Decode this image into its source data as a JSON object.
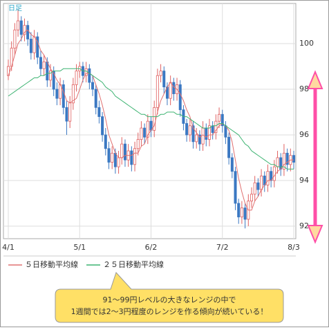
{
  "chart_data": {
    "type": "candlestick",
    "period_label": "日足",
    "categories": [
      "4/1",
      null,
      null,
      null,
      null,
      null,
      null,
      null,
      null,
      null,
      null,
      null,
      null,
      null,
      null,
      null,
      null,
      null,
      null,
      null,
      null,
      null,
      "5/1",
      null,
      null,
      null,
      null,
      null,
      null,
      null,
      null,
      null,
      null,
      null,
      null,
      null,
      null,
      null,
      null,
      null,
      null,
      null,
      null,
      null,
      "6/2",
      null,
      null,
      null,
      null,
      null,
      null,
      null,
      null,
      null,
      null,
      null,
      null,
      null,
      null,
      null,
      null,
      null,
      null,
      null,
      null,
      null,
      "7/2",
      null,
      null,
      null,
      null,
      null,
      null,
      null,
      null,
      null,
      null,
      null,
      null,
      null,
      null,
      null,
      null,
      null,
      null,
      null,
      null,
      null,
      "8/3"
    ],
    "ohlc": [
      [
        98.6,
        99.3,
        98.4,
        99.0
      ],
      [
        99.0,
        100.1,
        98.8,
        99.8
      ],
      [
        99.8,
        100.9,
        99.5,
        100.6
      ],
      [
        100.6,
        101.5,
        100.3,
        101.0
      ],
      [
        101.0,
        101.2,
        100.1,
        100.4
      ],
      [
        100.4,
        101.1,
        100.1,
        100.8
      ],
      [
        100.8,
        101.0,
        99.9,
        100.2
      ],
      [
        100.2,
        100.5,
        99.3,
        99.6
      ],
      [
        99.6,
        100.6,
        99.3,
        100.3
      ],
      [
        100.3,
        100.5,
        99.1,
        99.4
      ],
      [
        99.4,
        99.7,
        98.6,
        98.9
      ],
      [
        98.9,
        99.5,
        98.6,
        99.2
      ],
      [
        99.2,
        99.4,
        98.1,
        98.4
      ],
      [
        98.4,
        99.1,
        98.1,
        98.8
      ],
      [
        98.8,
        99.0,
        97.7,
        98.0
      ],
      [
        98.0,
        98.3,
        97.3,
        97.6
      ],
      [
        97.6,
        98.5,
        97.3,
        98.2
      ],
      [
        98.2,
        98.4,
        96.9,
        97.2
      ],
      [
        97.2,
        97.5,
        96.0,
        96.6
      ],
      [
        96.6,
        97.7,
        96.3,
        97.4
      ],
      [
        97.4,
        98.5,
        97.1,
        98.2
      ],
      [
        98.2,
        99.1,
        97.9,
        98.8
      ],
      [
        98.8,
        99.2,
        98.5,
        99.0
      ],
      [
        99.0,
        99.2,
        98.3,
        98.6
      ],
      [
        98.6,
        99.2,
        98.3,
        98.9
      ],
      [
        98.9,
        99.1,
        98.0,
        98.3
      ],
      [
        98.3,
        98.6,
        97.7,
        98.0
      ],
      [
        98.0,
        98.2,
        96.9,
        97.2
      ],
      [
        97.2,
        97.5,
        96.5,
        96.8
      ],
      [
        96.8,
        97.0,
        95.7,
        96.0
      ],
      [
        96.0,
        96.3,
        95.1,
        95.4
      ],
      [
        95.4,
        95.7,
        94.5,
        94.8
      ],
      [
        94.8,
        95.5,
        94.5,
        95.2
      ],
      [
        95.2,
        95.4,
        94.3,
        94.6
      ],
      [
        94.6,
        95.3,
        94.3,
        95.0
      ],
      [
        95.0,
        95.9,
        94.7,
        95.6
      ],
      [
        95.6,
        95.8,
        94.6,
        94.9
      ],
      [
        94.9,
        95.6,
        94.6,
        95.3
      ],
      [
        95.3,
        95.5,
        94.4,
        94.7
      ],
      [
        94.7,
        95.7,
        94.4,
        95.4
      ],
      [
        95.4,
        96.1,
        95.1,
        95.8
      ],
      [
        95.8,
        96.6,
        95.5,
        96.3
      ],
      [
        96.3,
        96.5,
        95.6,
        95.9
      ],
      [
        95.9,
        96.9,
        95.6,
        96.6
      ],
      [
        96.6,
        96.8,
        95.9,
        96.2
      ],
      [
        96.2,
        97.5,
        95.9,
        97.2
      ],
      [
        97.2,
        98.9,
        96.9,
        98.6
      ],
      [
        98.6,
        99.1,
        98.3,
        98.8
      ],
      [
        98.8,
        99.0,
        97.8,
        98.1
      ],
      [
        98.1,
        98.3,
        97.3,
        97.6
      ],
      [
        97.6,
        98.6,
        97.3,
        98.3
      ],
      [
        98.3,
        98.5,
        97.5,
        97.8
      ],
      [
        97.8,
        98.5,
        97.5,
        98.2
      ],
      [
        98.2,
        98.4,
        96.8,
        97.1
      ],
      [
        97.1,
        97.3,
        96.2,
        96.5
      ],
      [
        96.5,
        96.7,
        95.7,
        96.0
      ],
      [
        96.0,
        96.7,
        95.7,
        96.4
      ],
      [
        96.4,
        96.6,
        95.4,
        95.7
      ],
      [
        95.7,
        96.3,
        95.4,
        96.0
      ],
      [
        96.0,
        96.2,
        95.3,
        95.6
      ],
      [
        95.6,
        96.6,
        95.3,
        96.3
      ],
      [
        96.3,
        96.5,
        95.5,
        95.8
      ],
      [
        95.8,
        96.7,
        95.5,
        96.4
      ],
      [
        96.4,
        96.6,
        95.8,
        96.1
      ],
      [
        96.1,
        96.9,
        95.8,
        96.6
      ],
      [
        96.6,
        97.2,
        96.3,
        96.9
      ],
      [
        96.9,
        97.1,
        96.1,
        96.4
      ],
      [
        96.4,
        96.6,
        95.6,
        95.9
      ],
      [
        95.9,
        96.1,
        94.7,
        95.0
      ],
      [
        95.0,
        95.2,
        94.1,
        94.4
      ],
      [
        94.4,
        94.6,
        92.7,
        93.0
      ],
      [
        93.0,
        93.2,
        92.1,
        92.4
      ],
      [
        92.4,
        93.1,
        92.1,
        92.8
      ],
      [
        92.8,
        93.0,
        91.9,
        92.3
      ],
      [
        92.3,
        93.4,
        92.0,
        93.1
      ],
      [
        93.1,
        93.7,
        92.8,
        93.4
      ],
      [
        93.4,
        94.2,
        93.1,
        93.9
      ],
      [
        93.9,
        94.1,
        93.3,
        93.6
      ],
      [
        93.6,
        94.5,
        93.3,
        94.2
      ],
      [
        94.2,
        94.4,
        93.5,
        93.8
      ],
      [
        93.8,
        94.7,
        93.5,
        94.4
      ],
      [
        94.4,
        94.6,
        93.7,
        94.0
      ],
      [
        94.0,
        94.9,
        93.7,
        94.6
      ],
      [
        94.6,
        95.3,
        94.3,
        95.0
      ],
      [
        95.0,
        95.2,
        94.2,
        94.5
      ],
      [
        94.5,
        95.6,
        94.2,
        95.2
      ],
      [
        95.2,
        95.4,
        94.4,
        94.7
      ],
      [
        94.7,
        95.4,
        94.4,
        95.1
      ],
      [
        95.1,
        95.3,
        94.5,
        94.8
      ]
    ],
    "up_color": "#e06060",
    "down_color": "#3b78c2",
    "series": [
      {
        "name": "５日移動平均線",
        "color": "#e07070",
        "values": [
          98.6,
          99.0,
          99.5,
          100.0,
          100.2,
          100.5,
          100.6,
          100.4,
          100.3,
          100.1,
          99.7,
          99.5,
          99.2,
          98.9,
          98.7,
          98.4,
          98.2,
          97.9,
          97.5,
          97.4,
          97.5,
          97.6,
          98.0,
          98.4,
          98.7,
          98.7,
          98.6,
          98.2,
          97.8,
          97.3,
          96.7,
          96.0,
          95.6,
          95.2,
          95.0,
          95.0,
          95.1,
          95.1,
          95.1,
          95.2,
          95.2,
          95.5,
          95.6,
          96.0,
          96.2,
          96.4,
          97.0,
          97.5,
          97.8,
          98.1,
          98.3,
          98.1,
          98.0,
          97.8,
          97.5,
          97.1,
          96.8,
          96.3,
          96.1,
          95.9,
          96.0,
          95.9,
          96.0,
          96.0,
          96.2,
          96.4,
          96.5,
          96.4,
          96.2,
          95.7,
          94.9,
          94.1,
          93.5,
          93.0,
          92.7,
          92.7,
          93.1,
          93.3,
          93.6,
          93.8,
          94.0,
          94.0,
          94.2,
          94.4,
          94.5,
          94.7,
          94.8,
          94.9,
          94.9
        ]
      },
      {
        "name": "２５日移動平均線",
        "color": "#3cb371",
        "values": [
          97.7,
          97.8,
          97.9,
          98.0,
          98.1,
          98.2,
          98.3,
          98.4,
          98.5,
          98.5,
          98.6,
          98.6,
          98.7,
          98.7,
          98.8,
          98.8,
          98.8,
          98.9,
          98.9,
          98.9,
          98.9,
          98.9,
          98.9,
          98.8,
          98.8,
          98.7,
          98.6,
          98.5,
          98.4,
          98.3,
          98.1,
          98.0,
          97.9,
          97.7,
          97.6,
          97.5,
          97.4,
          97.3,
          97.2,
          97.1,
          97.0,
          96.9,
          96.9,
          96.8,
          96.8,
          96.8,
          96.8,
          96.9,
          96.9,
          97.0,
          97.0,
          97.0,
          96.9,
          96.9,
          96.8,
          96.8,
          96.7,
          96.6,
          96.5,
          96.4,
          96.3,
          96.3,
          96.3,
          96.4,
          96.4,
          96.5,
          96.5,
          96.4,
          96.3,
          96.2,
          96.1,
          96.0,
          95.8,
          95.6,
          95.5,
          95.3,
          95.2,
          95.1,
          95.0,
          94.9,
          94.8,
          94.7,
          94.7,
          94.6,
          94.6,
          94.6,
          94.5,
          94.5,
          94.5
        ]
      }
    ],
    "ylim": [
      91.45,
      101.76
    ],
    "yticks": [
      92,
      94,
      96,
      98,
      100
    ],
    "grid": true,
    "annotation": [
      "91～99円レベルの大きなレンジの中で",
      "1週間では2～3円程度のレンジを作る傾向が続いている！"
    ]
  }
}
